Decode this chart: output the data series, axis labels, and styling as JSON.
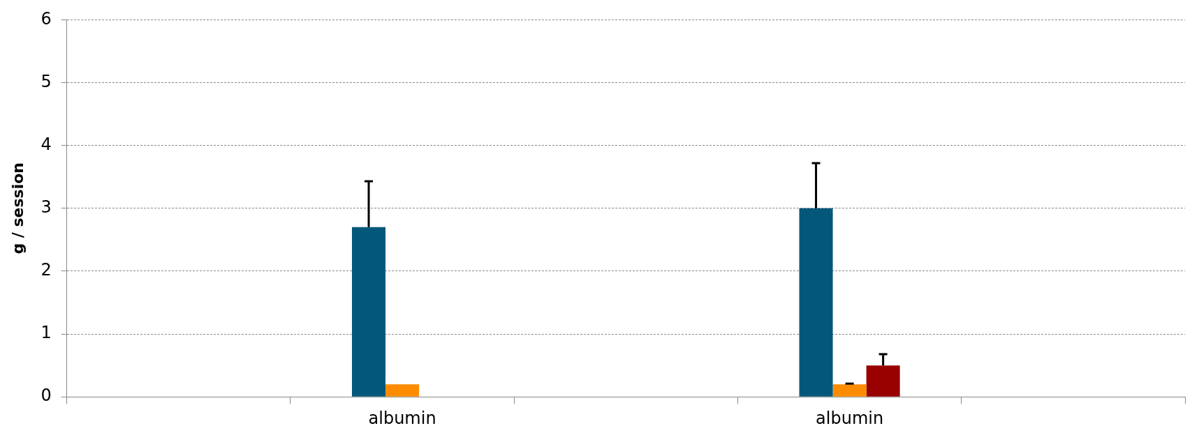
{
  "chart_data": {
    "type": "bar",
    "ylabel": "g / session",
    "categories": [
      null,
      "albumin",
      null,
      "albumin",
      null
    ],
    "series": [
      {
        "color": "#03587a",
        "values": [
          null,
          2.7,
          null,
          3.0,
          null
        ],
        "errors": [
          null,
          [
            2.7,
            3.43
          ],
          null,
          [
            3.0,
            3.72
          ],
          null
        ]
      },
      {
        "color": "#ff8c00",
        "values": [
          null,
          0.2,
          null,
          0.2,
          null
        ],
        "errors": [
          null,
          null,
          null,
          [
            0.2,
            0.21
          ],
          null
        ]
      },
      {
        "color": "#990000",
        "values": [
          null,
          null,
          null,
          0.5,
          null
        ],
        "errors": [
          null,
          null,
          null,
          [
            0.5,
            0.68
          ],
          null
        ]
      }
    ],
    "ylim": [
      0,
      6
    ],
    "yticks": [
      0,
      1,
      2,
      3,
      4,
      5,
      6
    ],
    "grid": "y",
    "legend": false
  }
}
